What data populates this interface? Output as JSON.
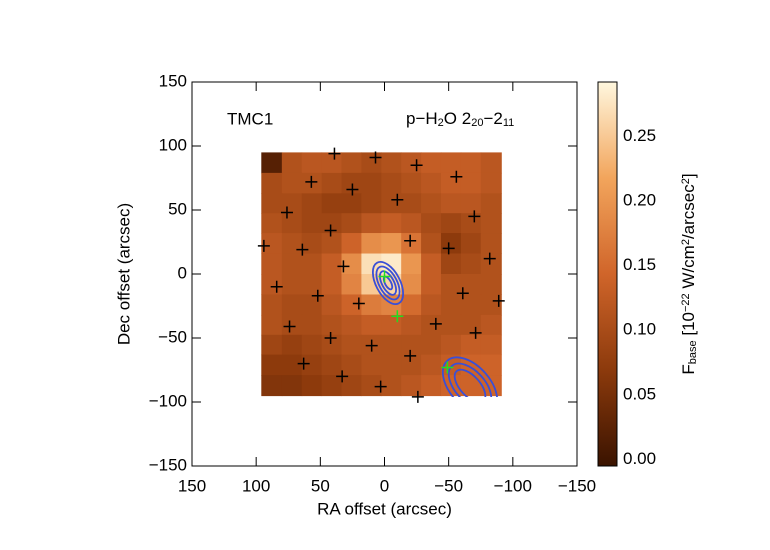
{
  "chart_data": {
    "type": "heatmap",
    "label_left": "TMC1",
    "label_right": [
      {
        "t": "p−H"
      },
      {
        "t": "2",
        "sub": true
      },
      {
        "t": "O 2"
      },
      {
        "t": "20",
        "sub": true
      },
      {
        "t": "−2"
      },
      {
        "t": "11",
        "sub": true
      }
    ],
    "xlabel": "RA offset (arcsec)",
    "ylabel": "Dec offset (arcsec)",
    "colorbar_label": [
      {
        "t": "F"
      },
      {
        "t": "base",
        "sub": true
      },
      {
        "t": " [10"
      },
      {
        "t": "−22",
        "sup": true
      },
      {
        "t": " W/cm"
      },
      {
        "t": "2",
        "sup": true
      },
      {
        "t": "/arcsec"
      },
      {
        "t": "2",
        "sup": true
      },
      {
        "t": "]"
      }
    ],
    "xlim": [
      150,
      -150
    ],
    "ylim": [
      -150,
      150
    ],
    "xticks": [
      150,
      100,
      50,
      0,
      {
        "value": -50,
        "label": "−50"
      },
      {
        "value": -100,
        "label": "−100"
      },
      {
        "value": -150,
        "label": "−150"
      }
    ],
    "yticks": [
      {
        "value": -150,
        "label": "−150"
      },
      {
        "value": -100,
        "label": "−100"
      },
      {
        "value": -50,
        "label": "−50"
      },
      0,
      50,
      100,
      150
    ],
    "clim": [
      -0.005,
      0.292
    ],
    "cticks": [
      {
        "value": 0,
        "label": "0.00"
      },
      0.05,
      {
        "value": 0.1,
        "label": "0.10"
      },
      0.15,
      {
        "value": 0.2,
        "label": "0.20"
      },
      0.25
    ],
    "colormap": [
      "#3a1300",
      "#8c3a0c",
      "#d0652a",
      "#f2a55c",
      "#fff7de"
    ],
    "x": [
      88,
      72,
      57,
      41,
      26,
      10,
      -5,
      -21,
      -36,
      -52,
      -67,
      -83
    ],
    "y": [
      87,
      71,
      55,
      40,
      24,
      8,
      -8,
      -24,
      -40,
      -55,
      -71,
      -87
    ],
    "z": [
      [
        0.02,
        0.11,
        0.12,
        0.12,
        0.11,
        0.1,
        0.11,
        0.12,
        0.13,
        0.13,
        0.13,
        0.12
      ],
      [
        0.1,
        0.11,
        0.11,
        0.1,
        0.09,
        0.09,
        0.1,
        0.11,
        0.12,
        0.13,
        0.13,
        0.12
      ],
      [
        0.1,
        0.1,
        0.09,
        0.08,
        0.08,
        0.09,
        0.1,
        0.1,
        0.11,
        0.12,
        0.12,
        0.11
      ],
      [
        0.11,
        0.1,
        0.09,
        0.09,
        0.1,
        0.12,
        0.13,
        0.12,
        0.1,
        0.09,
        0.1,
        0.11
      ],
      [
        0.12,
        0.11,
        0.1,
        0.11,
        0.14,
        0.19,
        0.2,
        0.16,
        0.11,
        0.07,
        0.09,
        0.11
      ],
      [
        0.12,
        0.11,
        0.11,
        0.13,
        0.19,
        0.27,
        0.28,
        0.2,
        0.13,
        0.09,
        0.1,
        0.11
      ],
      [
        0.12,
        0.11,
        0.11,
        0.13,
        0.18,
        0.25,
        0.26,
        0.19,
        0.13,
        0.11,
        0.11,
        0.11
      ],
      [
        0.11,
        0.1,
        0.1,
        0.12,
        0.14,
        0.17,
        0.18,
        0.15,
        0.12,
        0.11,
        0.11,
        0.11
      ],
      [
        0.11,
        0.1,
        0.1,
        0.11,
        0.12,
        0.13,
        0.13,
        0.12,
        0.11,
        0.11,
        0.11,
        0.12
      ],
      [
        0.09,
        0.08,
        0.09,
        0.1,
        0.11,
        0.11,
        0.11,
        0.11,
        0.11,
        0.12,
        0.13,
        0.13
      ],
      [
        0.07,
        0.07,
        0.08,
        0.09,
        0.1,
        0.11,
        0.11,
        0.11,
        0.12,
        0.13,
        0.14,
        0.14
      ],
      [
        0.06,
        0.06,
        0.07,
        0.08,
        0.09,
        0.1,
        0.11,
        0.12,
        0.13,
        0.14,
        0.14,
        0.14
      ]
    ],
    "crosses": {
      "color": "#000000",
      "x": [
        39,
        7,
        -25,
        57,
        25,
        -56,
        76,
        -10,
        -70,
        42,
        94,
        -20,
        -50,
        64,
        -82,
        32,
        84,
        52,
        -61,
        20,
        -89,
        74,
        -40,
        42,
        -71,
        10,
        -20,
        63,
        33,
        3,
        -26
      ],
      "y": [
        94,
        91,
        85,
        72,
        66,
        76,
        48,
        58,
        45,
        34,
        22,
        26,
        20,
        19,
        12,
        6,
        -10,
        -17,
        -15,
        -23,
        -21,
        -41,
        -39,
        -50,
        -46,
        -56,
        -64,
        -70,
        -80,
        -88,
        -96
      ]
    },
    "green_crosses": {
      "color": "#22dd22",
      "x": [
        0,
        -10,
        -49
      ],
      "y": [
        -2,
        -33,
        -73
      ]
    },
    "contour_color": "#3a4fd6"
  }
}
